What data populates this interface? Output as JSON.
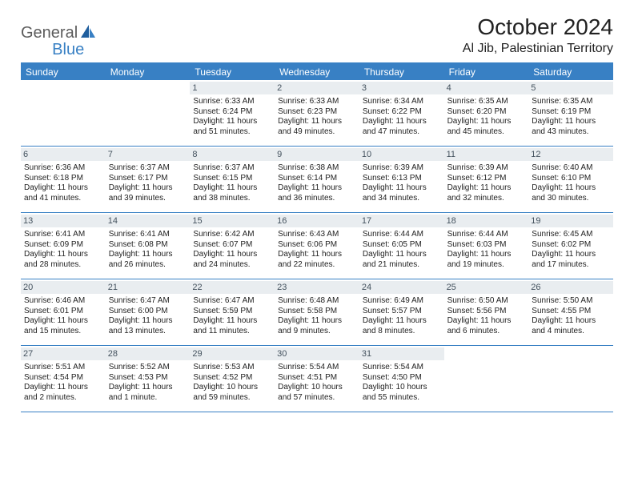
{
  "logo": {
    "general": "General",
    "blue": "Blue"
  },
  "title": "October 2024",
  "location": "Al Jib, Palestinian Territory",
  "colors": {
    "accent": "#3880c4",
    "header_bg": "#3880c4",
    "header_text": "#ffffff",
    "daynum_bg": "#e9edf0",
    "daynum_text": "#44525e",
    "body_text": "#222222",
    "logo_gray": "#5c5c5c"
  },
  "weekdays": [
    "Sunday",
    "Monday",
    "Tuesday",
    "Wednesday",
    "Thursday",
    "Friday",
    "Saturday"
  ],
  "weeks": [
    [
      {
        "n": "",
        "sr": "",
        "ss": "",
        "dl": ""
      },
      {
        "n": "",
        "sr": "",
        "ss": "",
        "dl": ""
      },
      {
        "n": "1",
        "sr": "Sunrise: 6:33 AM",
        "ss": "Sunset: 6:24 PM",
        "dl": "Daylight: 11 hours and 51 minutes."
      },
      {
        "n": "2",
        "sr": "Sunrise: 6:33 AM",
        "ss": "Sunset: 6:23 PM",
        "dl": "Daylight: 11 hours and 49 minutes."
      },
      {
        "n": "3",
        "sr": "Sunrise: 6:34 AM",
        "ss": "Sunset: 6:22 PM",
        "dl": "Daylight: 11 hours and 47 minutes."
      },
      {
        "n": "4",
        "sr": "Sunrise: 6:35 AM",
        "ss": "Sunset: 6:20 PM",
        "dl": "Daylight: 11 hours and 45 minutes."
      },
      {
        "n": "5",
        "sr": "Sunrise: 6:35 AM",
        "ss": "Sunset: 6:19 PM",
        "dl": "Daylight: 11 hours and 43 minutes."
      }
    ],
    [
      {
        "n": "6",
        "sr": "Sunrise: 6:36 AM",
        "ss": "Sunset: 6:18 PM",
        "dl": "Daylight: 11 hours and 41 minutes."
      },
      {
        "n": "7",
        "sr": "Sunrise: 6:37 AM",
        "ss": "Sunset: 6:17 PM",
        "dl": "Daylight: 11 hours and 39 minutes."
      },
      {
        "n": "8",
        "sr": "Sunrise: 6:37 AM",
        "ss": "Sunset: 6:15 PM",
        "dl": "Daylight: 11 hours and 38 minutes."
      },
      {
        "n": "9",
        "sr": "Sunrise: 6:38 AM",
        "ss": "Sunset: 6:14 PM",
        "dl": "Daylight: 11 hours and 36 minutes."
      },
      {
        "n": "10",
        "sr": "Sunrise: 6:39 AM",
        "ss": "Sunset: 6:13 PM",
        "dl": "Daylight: 11 hours and 34 minutes."
      },
      {
        "n": "11",
        "sr": "Sunrise: 6:39 AM",
        "ss": "Sunset: 6:12 PM",
        "dl": "Daylight: 11 hours and 32 minutes."
      },
      {
        "n": "12",
        "sr": "Sunrise: 6:40 AM",
        "ss": "Sunset: 6:10 PM",
        "dl": "Daylight: 11 hours and 30 minutes."
      }
    ],
    [
      {
        "n": "13",
        "sr": "Sunrise: 6:41 AM",
        "ss": "Sunset: 6:09 PM",
        "dl": "Daylight: 11 hours and 28 minutes."
      },
      {
        "n": "14",
        "sr": "Sunrise: 6:41 AM",
        "ss": "Sunset: 6:08 PM",
        "dl": "Daylight: 11 hours and 26 minutes."
      },
      {
        "n": "15",
        "sr": "Sunrise: 6:42 AM",
        "ss": "Sunset: 6:07 PM",
        "dl": "Daylight: 11 hours and 24 minutes."
      },
      {
        "n": "16",
        "sr": "Sunrise: 6:43 AM",
        "ss": "Sunset: 6:06 PM",
        "dl": "Daylight: 11 hours and 22 minutes."
      },
      {
        "n": "17",
        "sr": "Sunrise: 6:44 AM",
        "ss": "Sunset: 6:05 PM",
        "dl": "Daylight: 11 hours and 21 minutes."
      },
      {
        "n": "18",
        "sr": "Sunrise: 6:44 AM",
        "ss": "Sunset: 6:03 PM",
        "dl": "Daylight: 11 hours and 19 minutes."
      },
      {
        "n": "19",
        "sr": "Sunrise: 6:45 AM",
        "ss": "Sunset: 6:02 PM",
        "dl": "Daylight: 11 hours and 17 minutes."
      }
    ],
    [
      {
        "n": "20",
        "sr": "Sunrise: 6:46 AM",
        "ss": "Sunset: 6:01 PM",
        "dl": "Daylight: 11 hours and 15 minutes."
      },
      {
        "n": "21",
        "sr": "Sunrise: 6:47 AM",
        "ss": "Sunset: 6:00 PM",
        "dl": "Daylight: 11 hours and 13 minutes."
      },
      {
        "n": "22",
        "sr": "Sunrise: 6:47 AM",
        "ss": "Sunset: 5:59 PM",
        "dl": "Daylight: 11 hours and 11 minutes."
      },
      {
        "n": "23",
        "sr": "Sunrise: 6:48 AM",
        "ss": "Sunset: 5:58 PM",
        "dl": "Daylight: 11 hours and 9 minutes."
      },
      {
        "n": "24",
        "sr": "Sunrise: 6:49 AM",
        "ss": "Sunset: 5:57 PM",
        "dl": "Daylight: 11 hours and 8 minutes."
      },
      {
        "n": "25",
        "sr": "Sunrise: 6:50 AM",
        "ss": "Sunset: 5:56 PM",
        "dl": "Daylight: 11 hours and 6 minutes."
      },
      {
        "n": "26",
        "sr": "Sunrise: 5:50 AM",
        "ss": "Sunset: 4:55 PM",
        "dl": "Daylight: 11 hours and 4 minutes."
      }
    ],
    [
      {
        "n": "27",
        "sr": "Sunrise: 5:51 AM",
        "ss": "Sunset: 4:54 PM",
        "dl": "Daylight: 11 hours and 2 minutes."
      },
      {
        "n": "28",
        "sr": "Sunrise: 5:52 AM",
        "ss": "Sunset: 4:53 PM",
        "dl": "Daylight: 11 hours and 1 minute."
      },
      {
        "n": "29",
        "sr": "Sunrise: 5:53 AM",
        "ss": "Sunset: 4:52 PM",
        "dl": "Daylight: 10 hours and 59 minutes."
      },
      {
        "n": "30",
        "sr": "Sunrise: 5:54 AM",
        "ss": "Sunset: 4:51 PM",
        "dl": "Daylight: 10 hours and 57 minutes."
      },
      {
        "n": "31",
        "sr": "Sunrise: 5:54 AM",
        "ss": "Sunset: 4:50 PM",
        "dl": "Daylight: 10 hours and 55 minutes."
      },
      {
        "n": "",
        "sr": "",
        "ss": "",
        "dl": ""
      },
      {
        "n": "",
        "sr": "",
        "ss": "",
        "dl": ""
      }
    ]
  ]
}
